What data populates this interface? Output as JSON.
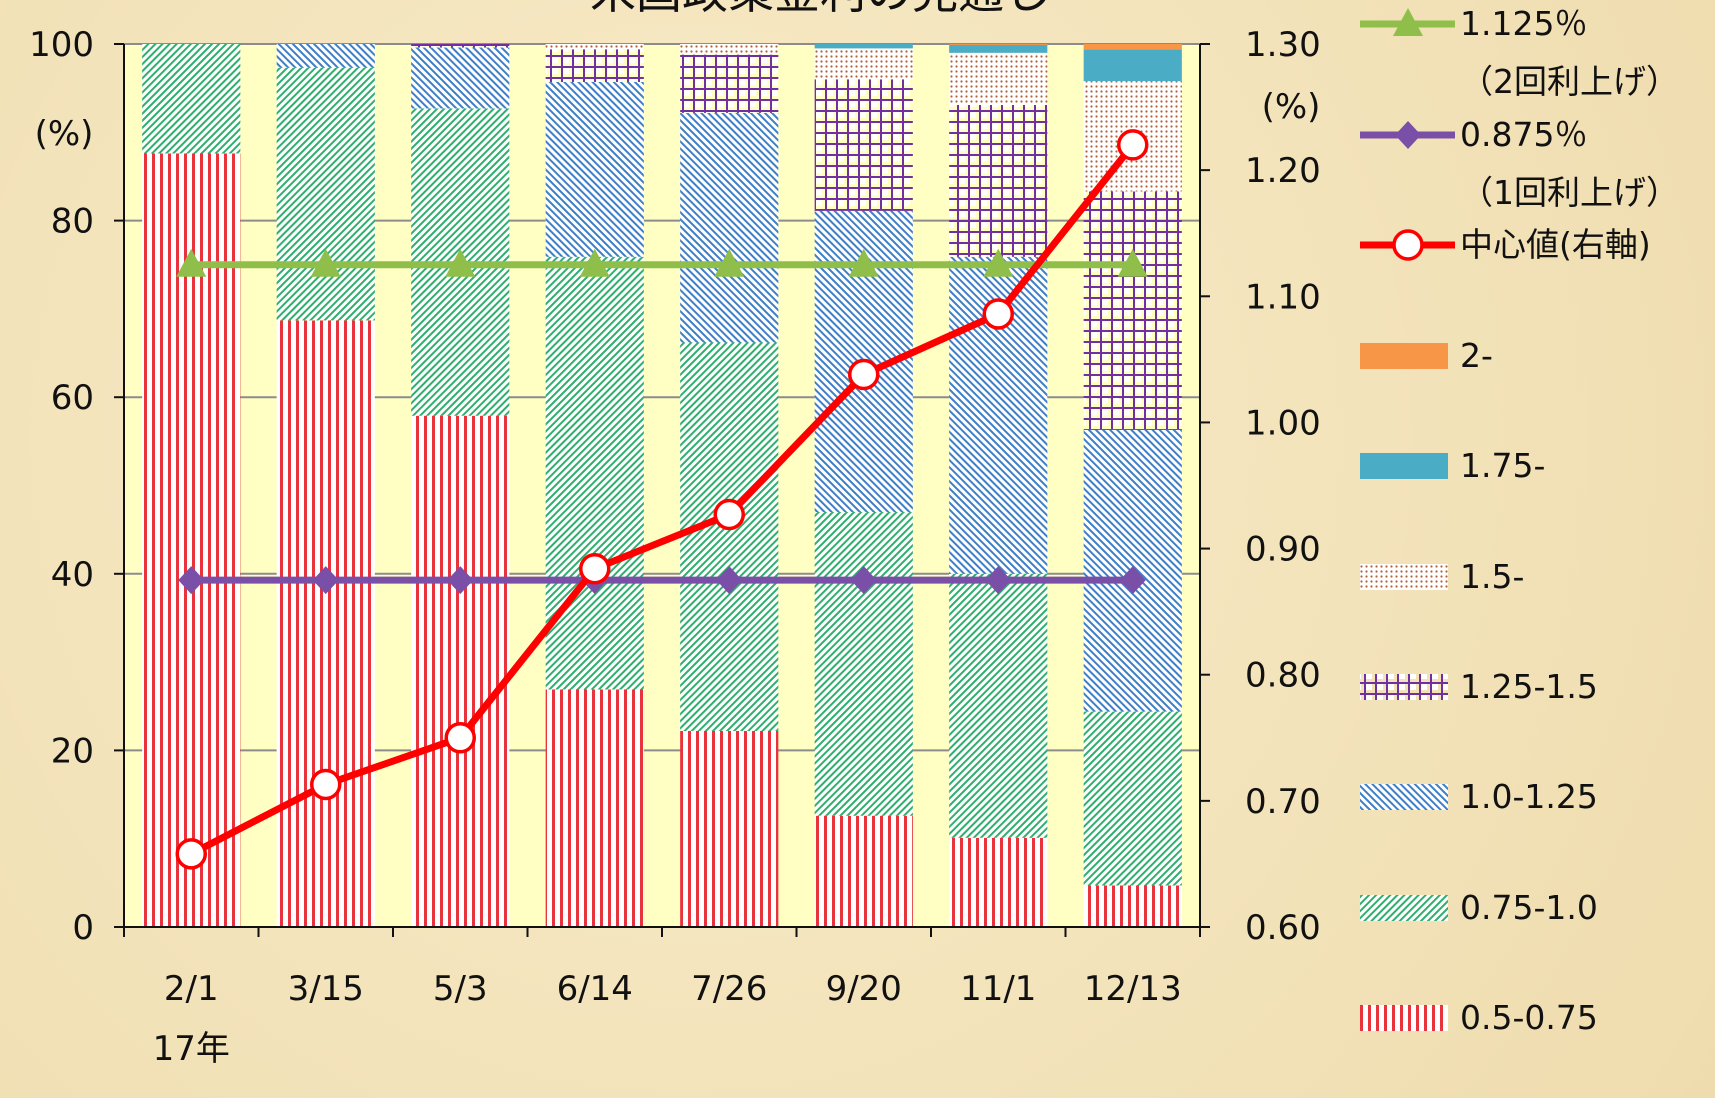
{
  "chart_data": {
    "type": "bar",
    "stacked": true,
    "title": "米国政策金利の見通し",
    "annotations": [
      "(%)",
      "(%)",
      "17年"
    ],
    "categories": [
      "2/1",
      "3/15",
      "5/3",
      "6/14",
      "7/26",
      "9/20",
      "11/1",
      "12/13"
    ],
    "ylim": [
      0,
      100
    ],
    "yticks": [
      0,
      20,
      40,
      60,
      80,
      100
    ],
    "y2lim": [
      0.6,
      1.3
    ],
    "y2ticks": [
      {
        "value": 0.6,
        "label": "0.60"
      },
      {
        "value": 0.7,
        "label": "0.70"
      },
      {
        "value": 0.8,
        "label": "0.80"
      },
      {
        "value": 0.9,
        "label": "0.90"
      },
      {
        "value": 1.0,
        "label": "1.00"
      },
      {
        "value": 1.1,
        "label": "1.10"
      },
      {
        "value": 1.2,
        "label": "1.20"
      },
      {
        "value": 1.3,
        "label": "1.30"
      }
    ],
    "grid": true,
    "legend": "right",
    "series": [
      {
        "name": "0.5-0.75",
        "type": "bar",
        "color": "#e8323c",
        "pattern": "vertical",
        "values": [
          87.6,
          68.7,
          57.9,
          26.9,
          22.2,
          12.6,
          10.1,
          4.7
        ]
      },
      {
        "name": "0.75-1.0",
        "type": "bar",
        "color": "#2fae6e",
        "pattern": "diagonal",
        "values": [
          12.4,
          28.6,
          34.8,
          49.0,
          44.0,
          34.4,
          29.9,
          19.7
        ]
      },
      {
        "name": "1.0-1.25",
        "type": "bar",
        "color": "#3f7fc6",
        "pattern": "diagonal-back",
        "values": [
          0,
          2.7,
          6.9,
          19.8,
          26.0,
          34.1,
          35.9,
          31.9
        ]
      },
      {
        "name": "1.25-1.5",
        "type": "bar",
        "color": "#7030a0",
        "pattern": "grid",
        "values": [
          0,
          0,
          0.4,
          3.7,
          6.6,
          14.9,
          17.2,
          27.0
        ]
      },
      {
        "name": "1.5-",
        "type": "bar",
        "color": "#b0603a",
        "pattern": "dots",
        "values": [
          0,
          0,
          0,
          0.6,
          1.2,
          3.5,
          5.9,
          12.5
        ]
      },
      {
        "name": "1.75-",
        "type": "bar",
        "color": "#4bacc6",
        "pattern": "solid",
        "values": [
          0,
          0,
          0,
          0,
          0,
          0.5,
          0.9,
          3.6
        ]
      },
      {
        "name": "2-",
        "type": "bar",
        "color": "#f79646",
        "pattern": "solid",
        "values": [
          0,
          0,
          0,
          0,
          0,
          0,
          0.1,
          0.6
        ]
      },
      {
        "name": "中心値(右軸)",
        "type": "line",
        "axis": "y2",
        "color": "#ff0000",
        "marker": "circle",
        "values": [
          0.658,
          0.713,
          0.75,
          0.884,
          0.927,
          1.038,
          1.086,
          1.22
        ]
      },
      {
        "name": "0.875％\n（1回利上げ）",
        "type": "line",
        "axis": "y2",
        "color": "#7a4fa8",
        "marker": "diamond",
        "values": [
          0.875,
          0.875,
          0.875,
          0.875,
          0.875,
          0.875,
          0.875,
          0.875
        ]
      },
      {
        "name": "1.125％\n（2回利上げ）",
        "type": "line",
        "axis": "y2",
        "color": "#8fbf4a",
        "marker": "triangle",
        "values": [
          1.125,
          1.125,
          1.125,
          1.125,
          1.125,
          1.125,
          1.125,
          1.125
        ]
      }
    ]
  }
}
